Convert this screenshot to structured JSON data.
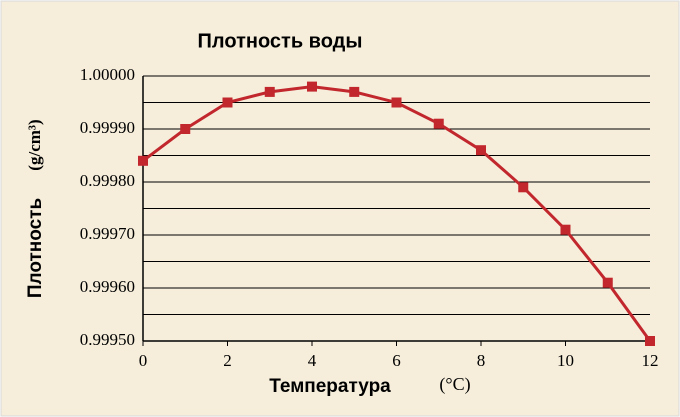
{
  "chart_data": {
    "type": "line",
    "title": "Плотность воды",
    "xlabel": "Температура",
    "xlabel_unit": "(°C)",
    "ylabel": "Плотность",
    "ylabel_unit": "(g/cm³)",
    "x": [
      0,
      1,
      2,
      3,
      4,
      5,
      6,
      7,
      8,
      9,
      10,
      11,
      12
    ],
    "series": [
      {
        "color": "#c1272d",
        "values": [
          0.99984,
          0.9999,
          0.99995,
          0.99997,
          0.99998,
          0.99997,
          0.99995,
          0.99991,
          0.99986,
          0.99979,
          0.99971,
          0.99961,
          0.9995
        ]
      }
    ],
    "xlim": [
      0,
      12
    ],
    "xticks": [
      0,
      2,
      4,
      6,
      8,
      10,
      12
    ],
    "ylim": [
      0.9995,
      1.0
    ],
    "yticks": [
      {
        "value": 0.9995,
        "label": "0.99950"
      },
      {
        "value": 0.9996,
        "label": "0.99960"
      },
      {
        "value": 0.9997,
        "label": "0.99970"
      },
      {
        "value": 0.9998,
        "label": "0.99980"
      },
      {
        "value": 0.9999,
        "label": "0.99990"
      },
      {
        "value": 1.0,
        "label": "1.00000"
      }
    ],
    "minor_yticks": [
      0.99955,
      0.99965,
      0.99975,
      0.99985,
      0.99995
    ],
    "grid": true
  }
}
